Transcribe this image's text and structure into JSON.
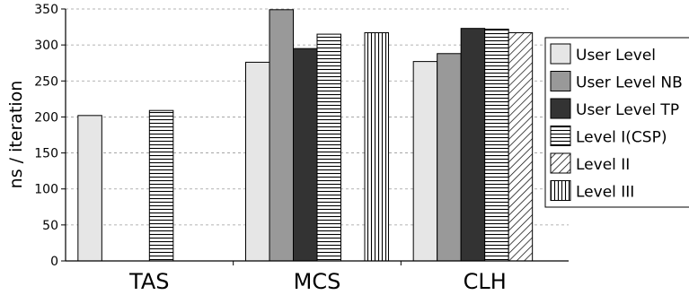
{
  "chart_data": {
    "type": "bar",
    "categories": [
      "TAS",
      "MCS",
      "CLH"
    ],
    "ylabel": "ns / iteration",
    "xlabel": "",
    "ylim": [
      0,
      350
    ],
    "yticks": [
      0,
      50,
      100,
      150,
      200,
      250,
      300,
      350
    ],
    "grid": "horizontal dashed",
    "legend_position": "right",
    "series": [
      {
        "name": "User Level",
        "pattern": "solid-light",
        "color": "#e6e6e6",
        "values": [
          202,
          276,
          277
        ]
      },
      {
        "name": "User Level NB",
        "pattern": "solid-mid",
        "color": "#999999",
        "values": [
          null,
          349,
          288
        ]
      },
      {
        "name": "User Level TP",
        "pattern": "solid-dark",
        "color": "#333333",
        "values": [
          null,
          295,
          323
        ]
      },
      {
        "name": "Level I(CSP)",
        "pattern": "horizontal-lines",
        "color": "#ffffff",
        "values": [
          209,
          315,
          322
        ]
      },
      {
        "name": "Level II",
        "pattern": "diagonal-lines",
        "color": "#ffffff",
        "values": [
          null,
          null,
          317
        ]
      },
      {
        "name": "Level III",
        "pattern": "vertical-lines",
        "color": "#ffffff",
        "values": [
          null,
          317,
          null
        ]
      }
    ]
  }
}
